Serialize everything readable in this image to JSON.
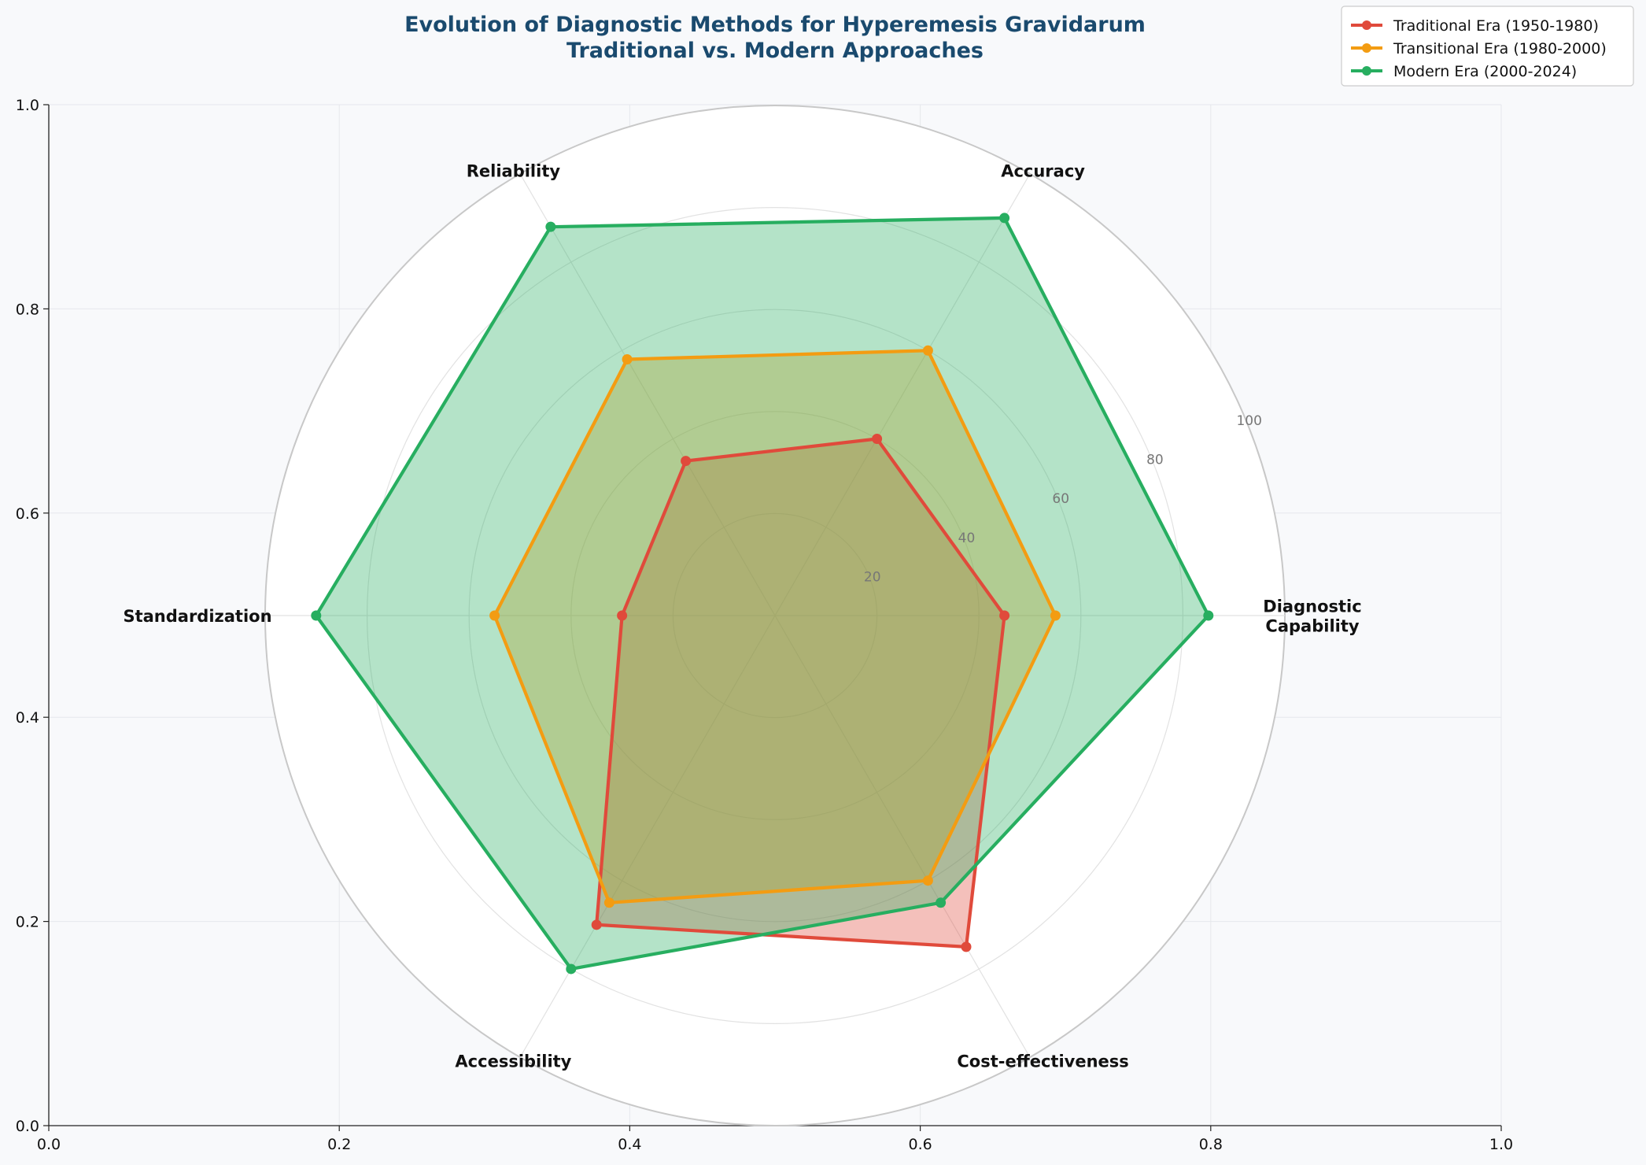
{
  "chart_data": {
    "type": "radar",
    "title": "Evolution of Diagnostic Methods for Hyperemesis Gravidarum",
    "subtitle": "Traditional vs. Modern Approaches",
    "axes": [
      {
        "label": "Diagnostic Capability",
        "label_lines": [
          "Diagnostic",
          "Capability"
        ]
      },
      {
        "label": "Accuracy",
        "label_lines": [
          "Accuracy"
        ]
      },
      {
        "label": "Reliability",
        "label_lines": [
          "Reliability"
        ]
      },
      {
        "label": "Standardization",
        "label_lines": [
          "Standardization"
        ]
      },
      {
        "label": "Accessibility",
        "label_lines": [
          "Accessibility"
        ]
      },
      {
        "label": "Cost-effectiveness",
        "label_lines": [
          "Cost-effectiveness"
        ]
      }
    ],
    "rlim": [
      0,
      100
    ],
    "radial_ticks": [
      "20",
      "40",
      "60",
      "80",
      "100"
    ],
    "radial_tick_values": [
      20,
      40,
      60,
      80,
      100
    ],
    "cartesian_ticks": [
      "0.0",
      "0.2",
      "0.4",
      "0.6",
      "0.8",
      "1.0"
    ],
    "cartesian_tick_values": [
      0.0,
      0.2,
      0.4,
      0.6,
      0.8,
      1.0
    ],
    "series": [
      {
        "name": "Traditional Era (1950-1980)",
        "color": "#e04a3b",
        "values": [
          45,
          40,
          35,
          30,
          70,
          75
        ]
      },
      {
        "name": "Transitional Era (1980-2000)",
        "color": "#f39c12",
        "values": [
          55,
          60,
          58,
          55,
          65,
          60
        ]
      },
      {
        "name": "Modern Era (2000-2024)",
        "color": "#27ae60",
        "values": [
          85,
          90,
          88,
          90,
          80,
          65
        ]
      }
    ],
    "legend_position": "top-right"
  }
}
